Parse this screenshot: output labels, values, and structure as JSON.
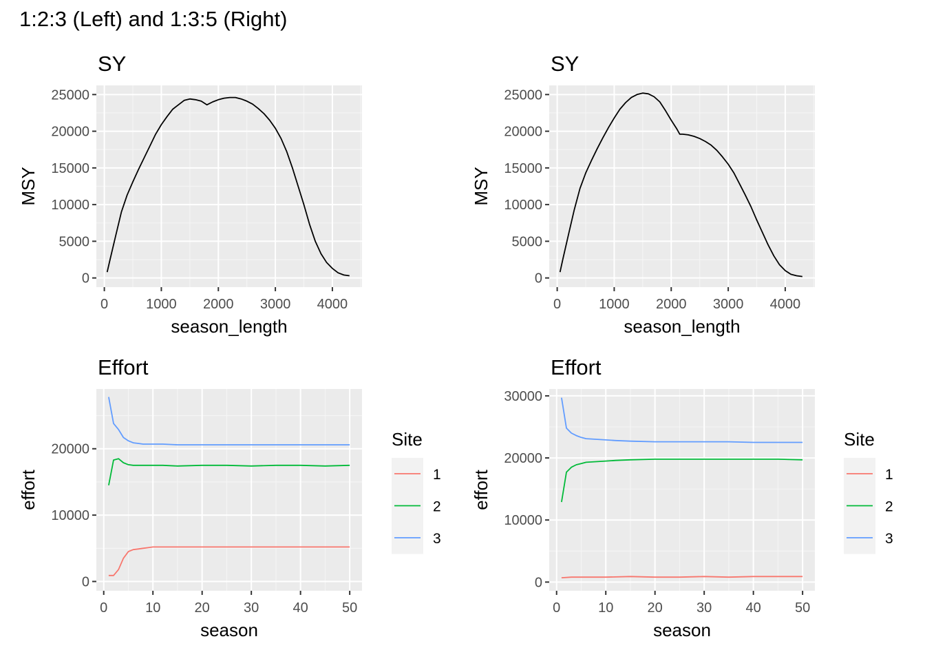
{
  "figure": {
    "title": "1:2:3 (Left) and 1:3:5 (Right)"
  },
  "colors": {
    "panel_bg": "#EBEBEB",
    "grid_major": "#FFFFFF",
    "grid_minor": "#F5F5F5",
    "axis_text": "#4D4D4D",
    "msy_line": "#000000",
    "site1": "#F8766D",
    "site2": "#00BA38",
    "site3": "#619CFF",
    "legend_key_bg": "#F2F2F2"
  },
  "chart_data": [
    {
      "id": "sy-left",
      "type": "line",
      "title": "SY",
      "xlabel": "season_length",
      "ylabel": "MSY",
      "xlim": [
        -140,
        4520
      ],
      "ylim": [
        -1250,
        26250
      ],
      "xticks": [
        0,
        1000,
        2000,
        3000,
        4000
      ],
      "yticks": [
        0,
        5000,
        10000,
        15000,
        20000,
        25000
      ],
      "grid": true,
      "series": [
        {
          "color_key": "msy_line",
          "x": [
            50,
            100,
            200,
            300,
            400,
            500,
            600,
            700,
            800,
            900,
            1000,
            1100,
            1200,
            1300,
            1400,
            1500,
            1600,
            1700,
            1800,
            1900,
            2000,
            2100,
            2200,
            2300,
            2400,
            2500,
            2600,
            2700,
            2800,
            2900,
            3000,
            3100,
            3200,
            3300,
            3400,
            3500,
            3600,
            3700,
            3800,
            3900,
            4000,
            4100,
            4200,
            4300
          ],
          "y": [
            800,
            2500,
            5800,
            9000,
            11300,
            13100,
            14800,
            16400,
            18000,
            19600,
            20900,
            22000,
            23000,
            23600,
            24200,
            24400,
            24300,
            24100,
            23600,
            24000,
            24300,
            24500,
            24600,
            24600,
            24400,
            24100,
            23700,
            23100,
            22400,
            21500,
            20400,
            19000,
            17200,
            15000,
            12500,
            10000,
            7300,
            5000,
            3300,
            2100,
            1300,
            700,
            400,
            300
          ]
        }
      ]
    },
    {
      "id": "sy-right",
      "type": "line",
      "title": "SY",
      "xlabel": "season_length",
      "ylabel": "MSY",
      "xlim": [
        -140,
        4520
      ],
      "ylim": [
        -1250,
        26250
      ],
      "xticks": [
        0,
        1000,
        2000,
        3000,
        4000
      ],
      "yticks": [
        0,
        5000,
        10000,
        15000,
        20000,
        25000
      ],
      "grid": true,
      "series": [
        {
          "color_key": "msy_line",
          "x": [
            50,
            100,
            200,
            300,
            400,
            500,
            600,
            700,
            800,
            900,
            1000,
            1100,
            1200,
            1300,
            1400,
            1500,
            1600,
            1700,
            1800,
            1900,
            2000,
            2100,
            2150,
            2200,
            2300,
            2400,
            2500,
            2600,
            2700,
            2800,
            2900,
            3000,
            3100,
            3200,
            3300,
            3400,
            3500,
            3600,
            3700,
            3800,
            3900,
            4000,
            4100,
            4200,
            4300
          ],
          "y": [
            800,
            2600,
            6000,
            9300,
            12200,
            14300,
            16000,
            17600,
            19100,
            20500,
            21800,
            23000,
            23900,
            24600,
            25000,
            25200,
            25100,
            24700,
            24000,
            22800,
            21500,
            20300,
            19600,
            19600,
            19500,
            19300,
            19000,
            18600,
            18100,
            17400,
            16500,
            15500,
            14300,
            12800,
            11300,
            9700,
            7900,
            6200,
            4500,
            3000,
            1800,
            1000,
            500,
            300,
            200
          ]
        }
      ]
    },
    {
      "id": "effort-left",
      "type": "line",
      "title": "Effort",
      "xlabel": "season",
      "ylabel": "effort",
      "xlim": [
        -1.5,
        52.5
      ],
      "ylim": [
        -1400,
        29000
      ],
      "xticks": [
        0,
        10,
        20,
        30,
        40,
        50
      ],
      "yticks": [
        0,
        10000,
        20000
      ],
      "grid": true,
      "legend": {
        "title": "Site",
        "position": "right",
        "labels": [
          "1",
          "2",
          "3"
        ]
      },
      "series": [
        {
          "name": "1",
          "color_key": "site1",
          "x": [
            1,
            2,
            3,
            4,
            5,
            6,
            7,
            8,
            9,
            10,
            12,
            15,
            20,
            25,
            30,
            35,
            40,
            45,
            50
          ],
          "y": [
            900,
            900,
            1800,
            3500,
            4500,
            4800,
            4900,
            5000,
            5100,
            5200,
            5200,
            5200,
            5200,
            5200,
            5200,
            5200,
            5200,
            5200,
            5200
          ]
        },
        {
          "name": "2",
          "color_key": "site2",
          "x": [
            1,
            2,
            3,
            4,
            5,
            6,
            7,
            8,
            10,
            12,
            15,
            20,
            25,
            30,
            35,
            40,
            45,
            50
          ],
          "y": [
            14500,
            18300,
            18500,
            17900,
            17600,
            17500,
            17500,
            17500,
            17500,
            17500,
            17400,
            17500,
            17500,
            17400,
            17500,
            17500,
            17400,
            17500
          ]
        },
        {
          "name": "3",
          "color_key": "site3",
          "x": [
            1,
            2,
            3,
            4,
            5,
            6,
            7,
            8,
            10,
            12,
            15,
            20,
            25,
            30,
            35,
            40,
            45,
            50
          ],
          "y": [
            27800,
            23800,
            22900,
            21700,
            21200,
            20900,
            20800,
            20700,
            20700,
            20700,
            20600,
            20600,
            20600,
            20600,
            20600,
            20600,
            20600,
            20600
          ]
        }
      ]
    },
    {
      "id": "effort-right",
      "type": "line",
      "title": "Effort",
      "xlabel": "season",
      "ylabel": "effort",
      "xlim": [
        -1.5,
        52.5
      ],
      "ylim": [
        -1400,
        31100
      ],
      "xticks": [
        0,
        10,
        20,
        30,
        40,
        50
      ],
      "yticks": [
        0,
        10000,
        20000,
        30000
      ],
      "grid": true,
      "legend": {
        "title": "Site",
        "position": "right",
        "labels": [
          "1",
          "2",
          "3"
        ]
      },
      "series": [
        {
          "name": "1",
          "color_key": "site1",
          "x": [
            1,
            3,
            5,
            10,
            15,
            20,
            25,
            30,
            35,
            40,
            45,
            50
          ],
          "y": [
            700,
            800,
            800,
            800,
            900,
            800,
            800,
            900,
            800,
            900,
            900,
            900
          ]
        },
        {
          "name": "2",
          "color_key": "site2",
          "x": [
            1,
            2,
            3,
            4,
            5,
            6,
            8,
            10,
            12,
            15,
            20,
            25,
            30,
            35,
            40,
            45,
            50
          ],
          "y": [
            12900,
            17700,
            18500,
            18900,
            19100,
            19300,
            19400,
            19500,
            19600,
            19700,
            19800,
            19800,
            19800,
            19800,
            19800,
            19800,
            19700
          ]
        },
        {
          "name": "3",
          "color_key": "site3",
          "x": [
            1,
            2,
            3,
            4,
            5,
            6,
            8,
            10,
            12,
            15,
            20,
            25,
            30,
            35,
            40,
            45,
            50
          ],
          "y": [
            29700,
            24800,
            24000,
            23600,
            23300,
            23100,
            23000,
            22900,
            22800,
            22700,
            22600,
            22600,
            22600,
            22600,
            22500,
            22500,
            22500
          ]
        }
      ]
    }
  ]
}
